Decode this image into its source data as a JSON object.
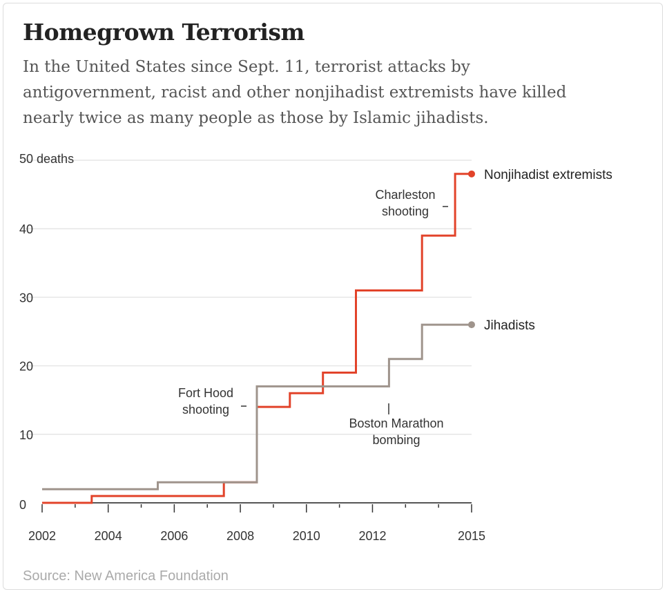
{
  "header": {
    "title": "Homegrown Terrorism",
    "subtitle_lines": [
      "In the United States since Sept. 11, terrorist attacks by",
      "antigovernment, racist and other nonjihadist extremists have killed",
      "nearly twice as many people as those by Islamic jihadists."
    ]
  },
  "source": "Source: New America Foundation",
  "colors": {
    "nonjihadist": "#e2432a",
    "jihadist": "#9f948c",
    "grid": "#e6e6e6",
    "axis": "#555555"
  },
  "chart_data": {
    "type": "line",
    "step": true,
    "xlim": [
      2002,
      2015
    ],
    "ylim": [
      0,
      50
    ],
    "x_ticks": [
      2002,
      2004,
      2006,
      2008,
      2010,
      2012,
      2015
    ],
    "x_tick_marks": [
      2002,
      2003,
      2004,
      2005,
      2006,
      2007,
      2008,
      2009,
      2010,
      2011,
      2012,
      2013,
      2014,
      2015
    ],
    "y_ticks": [
      0,
      10,
      20,
      30,
      40,
      50
    ],
    "y_tick_labels": [
      "0",
      "10",
      "20",
      "30",
      "40",
      "50 deaths"
    ],
    "grid": true,
    "series": [
      {
        "name": "Nonjihadist extremists",
        "color": "#e2432a",
        "points": [
          [
            2002,
            0
          ],
          [
            2003.5,
            0
          ],
          [
            2003.5,
            1
          ],
          [
            2007.5,
            1
          ],
          [
            2007.5,
            3
          ],
          [
            2008.5,
            3
          ],
          [
            2008.5,
            14
          ],
          [
            2009.5,
            14
          ],
          [
            2009.5,
            16
          ],
          [
            2010.5,
            16
          ],
          [
            2010.5,
            19
          ],
          [
            2011.5,
            19
          ],
          [
            2011.5,
            31
          ],
          [
            2013.5,
            31
          ],
          [
            2013.5,
            39
          ],
          [
            2014.5,
            39
          ],
          [
            2014.5,
            48
          ],
          [
            2015,
            48
          ]
        ]
      },
      {
        "name": "Jihadists",
        "color": "#9f948c",
        "points": [
          [
            2002,
            2
          ],
          [
            2005.5,
            2
          ],
          [
            2005.5,
            3
          ],
          [
            2008.5,
            3
          ],
          [
            2008.5,
            17
          ],
          [
            2012.5,
            17
          ],
          [
            2012.5,
            21
          ],
          [
            2013.5,
            21
          ],
          [
            2013.5,
            26
          ],
          [
            2015,
            26
          ]
        ]
      }
    ],
    "annotations": [
      {
        "lines": [
          "Charleston",
          "shooting"
        ],
        "x": 2014.5,
        "y": 44
      },
      {
        "lines": [
          "Fort Hood",
          "shooting"
        ],
        "x": 2008.5,
        "y": 15
      },
      {
        "lines": [
          "Boston Marathon",
          "bombing"
        ],
        "x": 2012.5,
        "y": 14
      }
    ]
  }
}
